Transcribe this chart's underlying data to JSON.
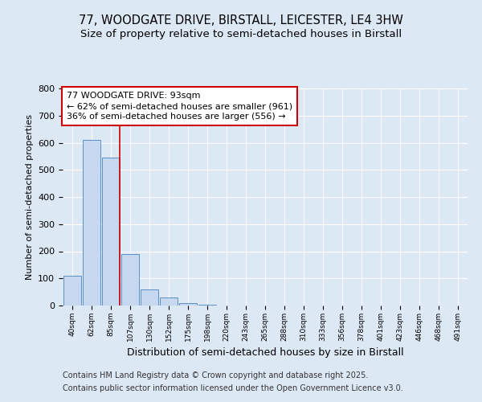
{
  "title1": "77, WOODGATE DRIVE, BIRSTALL, LEICESTER, LE4 3HW",
  "title2": "Size of property relative to semi-detached houses in Birstall",
  "xlabel": "Distribution of semi-detached houses by size in Birstall",
  "ylabel": "Number of semi-detached properties",
  "categories": [
    "40sqm",
    "62sqm",
    "85sqm",
    "107sqm",
    "130sqm",
    "152sqm",
    "175sqm",
    "198sqm",
    "220sqm",
    "243sqm",
    "265sqm",
    "288sqm",
    "310sqm",
    "333sqm",
    "356sqm",
    "378sqm",
    "401sqm",
    "423sqm",
    "446sqm",
    "468sqm",
    "491sqm"
  ],
  "values": [
    110,
    610,
    545,
    190,
    60,
    30,
    10,
    2,
    0,
    0,
    0,
    0,
    0,
    0,
    0,
    0,
    0,
    0,
    0,
    0,
    0
  ],
  "bar_color": "#c5d8f0",
  "bar_edge_color": "#5b8fc9",
  "property_line_color": "#cc0000",
  "property_line_bin": 2,
  "annotation_text": "77 WOODGATE DRIVE: 93sqm\n← 62% of semi-detached houses are smaller (961)\n36% of semi-detached houses are larger (556) →",
  "annotation_box_edgecolor": "#cc0000",
  "ylim": [
    0,
    800
  ],
  "yticks": [
    0,
    100,
    200,
    300,
    400,
    500,
    600,
    700,
    800
  ],
  "background_color": "#dde8f5",
  "grid_color": "#ffffff",
  "footer_line1": "Contains HM Land Registry data © Crown copyright and database right 2025.",
  "footer_line2": "Contains public sector information licensed under the Open Government Licence v3.0.",
  "title_fontsize": 10.5,
  "subtitle_fontsize": 9.5,
  "annotation_fontsize": 8,
  "footer_fontsize": 7,
  "ylabel_fontsize": 8,
  "xlabel_fontsize": 9
}
